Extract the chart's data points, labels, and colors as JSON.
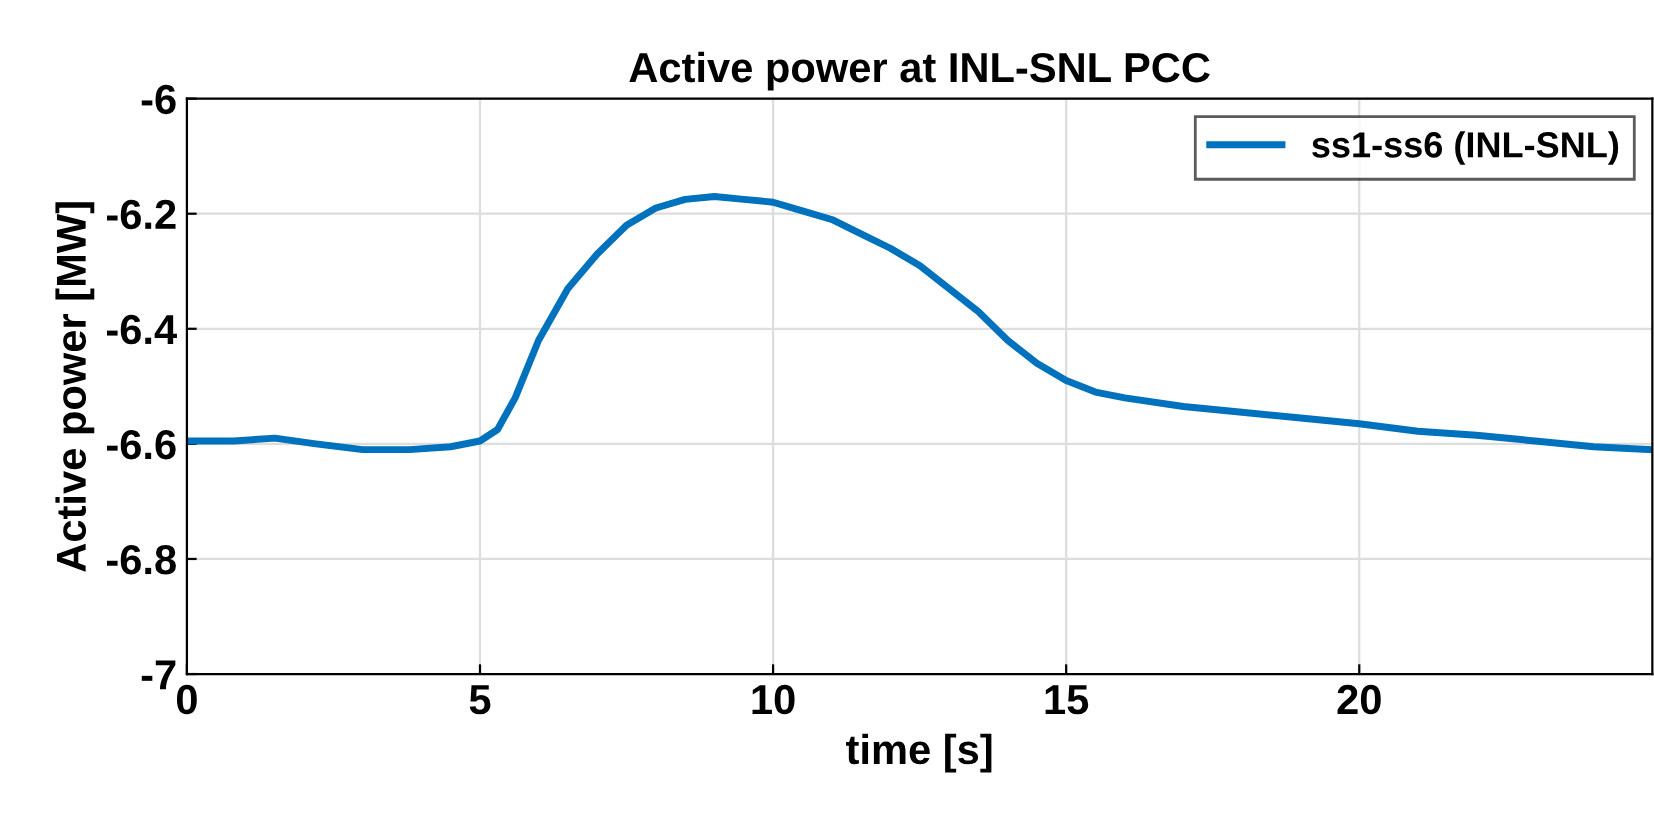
{
  "chart_data": {
    "type": "line",
    "title": "Active power at INL-SNL PCC",
    "xlabel": "time [s]",
    "ylabel": "Active power [MW]",
    "series": [
      {
        "name": "ss1-ss6 (INL-SNL)",
        "color": "#0072bd",
        "x": [
          0,
          0.8,
          1.5,
          2.2,
          3,
          3.8,
          4.5,
          5,
          5.3,
          5.6,
          6,
          6.5,
          7,
          7.5,
          8,
          8.5,
          9,
          9.5,
          10,
          10.5,
          11,
          11.5,
          12,
          12.5,
          13,
          13.5,
          14,
          14.5,
          15,
          15.5,
          16,
          17,
          18,
          19,
          20,
          21,
          22,
          23,
          24,
          25
        ],
        "values": [
          -6.595,
          -6.595,
          -6.59,
          -6.6,
          -6.61,
          -6.61,
          -6.605,
          -6.595,
          -6.575,
          -6.52,
          -6.42,
          -6.33,
          -6.27,
          -6.22,
          -6.19,
          -6.175,
          -6.17,
          -6.175,
          -6.18,
          -6.195,
          -6.21,
          -6.235,
          -6.26,
          -6.29,
          -6.33,
          -6.37,
          -6.42,
          -6.46,
          -6.49,
          -6.51,
          -6.52,
          -6.535,
          -6.545,
          -6.555,
          -6.565,
          -6.578,
          -6.585,
          -6.595,
          -6.605,
          -6.61
        ]
      }
    ],
    "xlim": [
      0,
      25
    ],
    "xticks": [
      0,
      5,
      10,
      15,
      20
    ],
    "ylim": [
      -7,
      -6
    ],
    "yticks": [
      -7,
      -6.8,
      -6.6,
      -6.4,
      -6.2,
      -6
    ],
    "grid": true,
    "legend": "top right",
    "marker": "none",
    "line_style": "solid"
  }
}
